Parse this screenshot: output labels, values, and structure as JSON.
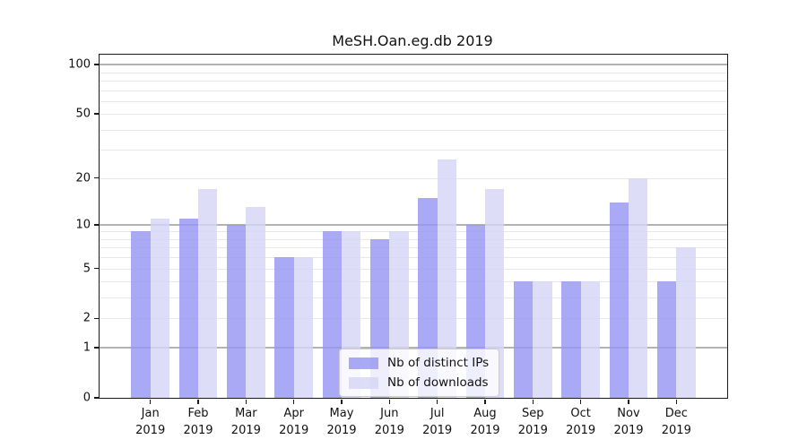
{
  "chart_data": {
    "type": "bar",
    "title": "MeSH.Oan.eg.db 2019",
    "yscale": "log1p",
    "grid": true,
    "legend_position": "lower center",
    "categories": [
      "Jan",
      "Feb",
      "Mar",
      "Apr",
      "May",
      "Jun",
      "Jul",
      "Aug",
      "Sep",
      "Oct",
      "Nov",
      "Dec"
    ],
    "xtick_year": "2019",
    "series": [
      {
        "name": "Nb of distinct IPs",
        "color": "rgba(150,150,243,0.82)",
        "values": [
          9,
          11,
          10,
          6,
          9,
          8,
          15,
          10,
          4,
          4,
          14,
          4
        ]
      },
      {
        "name": "Nb of downloads",
        "color": "rgba(213,213,247,0.82)",
        "values": [
          11,
          17,
          13,
          6,
          9,
          9,
          26,
          17,
          4,
          4,
          20,
          7
        ]
      }
    ],
    "yticks": [
      0,
      1,
      2,
      5,
      10,
      20,
      50,
      100
    ],
    "ylim": [
      0,
      115
    ],
    "major_gridlines": [
      1,
      10,
      100
    ],
    "minor_gridlines": [
      2,
      3,
      4,
      5,
      6,
      7,
      8,
      9,
      20,
      30,
      40,
      50,
      60,
      70,
      80,
      90
    ]
  }
}
